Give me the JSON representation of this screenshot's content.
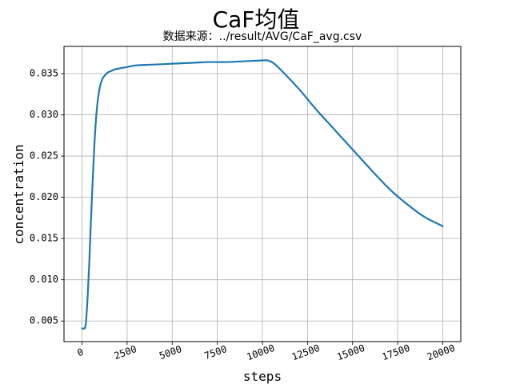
{
  "chart_data": {
    "type": "line",
    "title": "CaF均值",
    "subtitle": "数据来源：../result/AVG/CaF_avg.csv",
    "xlabel": "steps",
    "ylabel": "concentration",
    "xlim": [
      -1000,
      21000
    ],
    "ylim": [
      0.0025,
      0.0383
    ],
    "grid": true,
    "line_color": "#1f77b4",
    "x_ticks": [
      0,
      2500,
      5000,
      7500,
      10000,
      12500,
      15000,
      17500,
      20000
    ],
    "x_tick_labels": [
      "0",
      "2500",
      "5000",
      "7500",
      "10000",
      "12500",
      "15000",
      "17500",
      "20000"
    ],
    "y_ticks": [
      0.005,
      0.01,
      0.015,
      0.02,
      0.025,
      0.03,
      0.035
    ],
    "y_tick_labels": [
      "0.005",
      "0.010",
      "0.015",
      "0.020",
      "0.025",
      "0.030",
      "0.035"
    ],
    "series": [
      {
        "x": [
          0,
          100,
          200,
          300,
          400,
          500,
          600,
          700,
          800,
          900,
          1000,
          1100,
          1200,
          1400,
          1600,
          1800,
          2000,
          2500,
          3000,
          4000,
          5000,
          6000,
          7000,
          8000,
          9000,
          10000,
          10300,
          10600,
          11000,
          12000,
          13000,
          14000,
          15000,
          16000,
          17000,
          18000,
          19000,
          20000
        ],
        "y": [
          0.0041,
          0.0041,
          0.0045,
          0.0075,
          0.012,
          0.0175,
          0.0225,
          0.027,
          0.0302,
          0.0322,
          0.0335,
          0.0342,
          0.0346,
          0.0351,
          0.0353,
          0.0355,
          0.0356,
          0.0358,
          0.036,
          0.0361,
          0.0362,
          0.0363,
          0.0364,
          0.0364,
          0.0365,
          0.0366,
          0.0366,
          0.0363,
          0.0355,
          0.0332,
          0.0306,
          0.0282,
          0.0258,
          0.0234,
          0.0211,
          0.0192,
          0.0176,
          0.0165
        ]
      }
    ]
  }
}
